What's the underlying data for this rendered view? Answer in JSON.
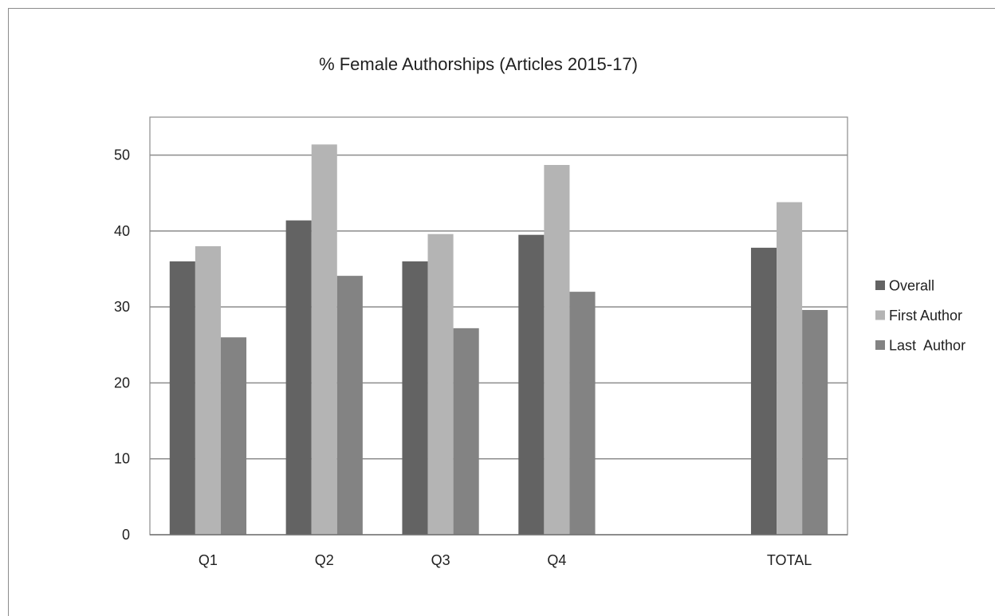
{
  "chart_data": {
    "type": "bar",
    "title": "% Female Authorships  (Articles 2015-17)",
    "xlabel": "",
    "ylabel": "",
    "categories": [
      "Q1",
      "Q2",
      "Q3",
      "Q4",
      "",
      "TOTAL"
    ],
    "series": [
      {
        "name": "Overall",
        "color": "#636363",
        "values": [
          36.0,
          41.4,
          36.0,
          39.5,
          null,
          37.8
        ]
      },
      {
        "name": "First Author",
        "color": "#b4b4b4",
        "values": [
          38.0,
          51.4,
          39.6,
          48.7,
          null,
          43.8
        ]
      },
      {
        "name": "Last  Author",
        "color": "#838383",
        "values": [
          26.0,
          34.1,
          27.2,
          32.0,
          null,
          29.6
        ]
      }
    ],
    "ylim": [
      0,
      55
    ],
    "yticks": [
      0,
      10,
      20,
      30,
      40,
      50
    ],
    "grid": true,
    "legend_position": "right"
  }
}
